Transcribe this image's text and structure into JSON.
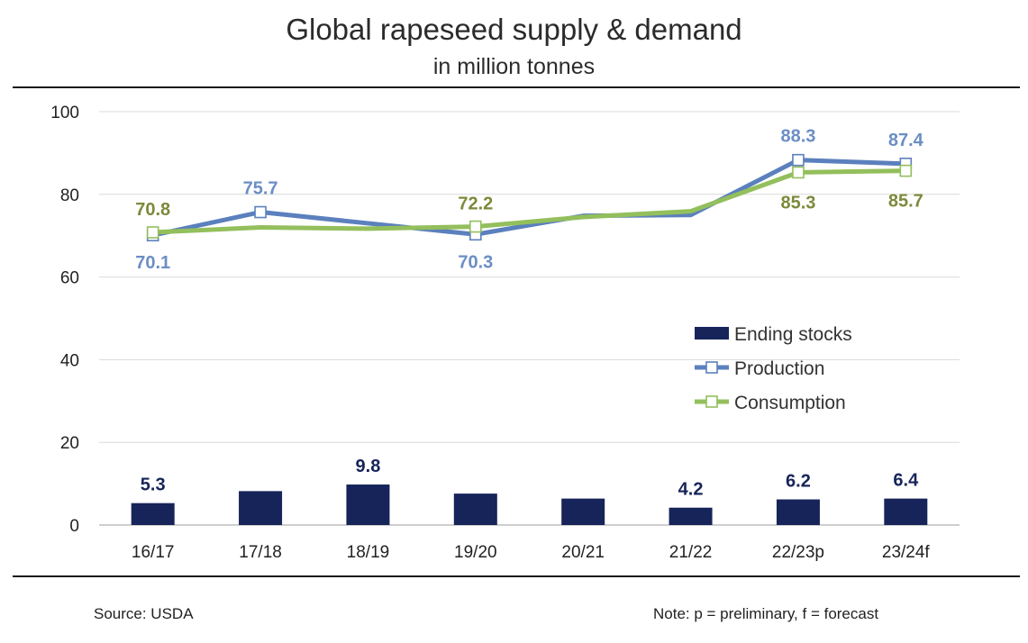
{
  "chart_data": {
    "type": "bar+line",
    "title": "Global rapeseed supply & demand",
    "subtitle": "in million tonnes",
    "categories": [
      "16/17",
      "17/18",
      "18/19",
      "19/20",
      "20/21",
      "21/22",
      "22/23p",
      "23/24f"
    ],
    "ylim": [
      0,
      100
    ],
    "yticks": [
      0,
      20,
      40,
      60,
      80,
      100
    ],
    "grid": true,
    "legend_position": "right-middle",
    "series": [
      {
        "name": "Ending stocks",
        "type": "bar",
        "color": "#17245a",
        "values": [
          5.3,
          8.2,
          9.8,
          7.6,
          6.4,
          4.2,
          6.2,
          6.4
        ],
        "labels": [
          "5.3",
          "",
          "9.8",
          "",
          "",
          "4.2",
          "6.2",
          "6.4"
        ]
      },
      {
        "name": "Production",
        "type": "line",
        "color": "#5b80bd",
        "label_color": "#6b8ec4",
        "values": [
          70.1,
          75.7,
          73.0,
          70.3,
          74.8,
          75.0,
          88.3,
          87.4
        ],
        "labels": [
          "70.1",
          "75.7",
          "",
          "70.3",
          "",
          "",
          "88.3",
          "87.4"
        ]
      },
      {
        "name": "Consumption",
        "type": "line",
        "color": "#93bf5c",
        "label_color": "#7b8a3a",
        "values": [
          70.8,
          72.0,
          71.7,
          72.2,
          74.5,
          75.9,
          85.3,
          85.7
        ],
        "labels": [
          "70.8",
          "",
          "",
          "72.2",
          "",
          "",
          "85.3",
          "85.7"
        ]
      }
    ]
  },
  "footer": {
    "source": "Source: USDA",
    "note": "Note: p = preliminary, f = forecast"
  }
}
